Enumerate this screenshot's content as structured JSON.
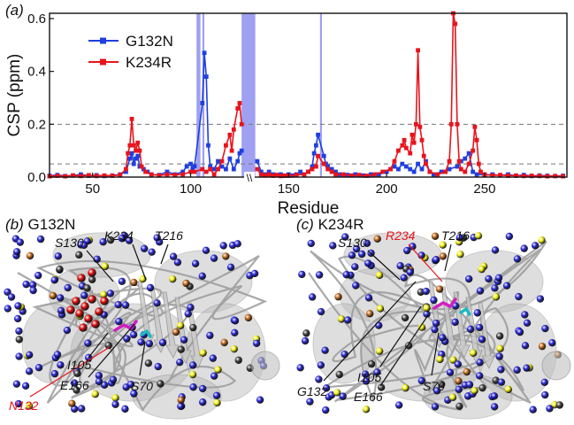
{
  "panel_a": {
    "tag": "(a)",
    "chart_data": {
      "type": "line",
      "xlabel": "Residue",
      "ylabel": "CSP (ppm)",
      "xlim": [
        28,
        292
      ],
      "ylim": [
        0,
        0.62
      ],
      "x_ticks": [
        50,
        100,
        150,
        200,
        250
      ],
      "y_ticks": [
        0.0,
        0.2,
        0.4,
        0.6
      ],
      "y_tick_labels": [
        "0.0",
        "0.2",
        "0.4",
        "0.6"
      ],
      "legend_position": "top-left",
      "thresholds": [
        0.05,
        0.2
      ],
      "highlight_ranges": [
        [
          103,
          105
        ],
        [
          106,
          107
        ],
        [
          126,
          133
        ],
        [
          166,
          167
        ]
      ],
      "axis_break_label": "\\\\",
      "series": [
        {
          "name": "G132N",
          "color": "#1f3fe0",
          "points": [
            [
              28,
              0.005
            ],
            [
              32,
              0.008
            ],
            [
              36,
              0.004
            ],
            [
              40,
              0.006
            ],
            [
              44,
              0.01
            ],
            [
              48,
              0.005
            ],
            [
              52,
              0.007
            ],
            [
              56,
              0.004
            ],
            [
              60,
              0.006
            ],
            [
              64,
              0.01
            ],
            [
              67,
              0.02
            ],
            [
              69,
              0.07
            ],
            [
              70,
              0.09
            ],
            [
              71,
              0.05
            ],
            [
              72,
              0.07
            ],
            [
              73,
              0.08
            ],
            [
              74,
              0.04
            ],
            [
              76,
              0.03
            ],
            [
              78,
              0.02
            ],
            [
              80,
              0.01
            ],
            [
              84,
              0.008
            ],
            [
              88,
              0.02
            ],
            [
              92,
              0.01
            ],
            [
              96,
              0.02
            ],
            [
              98,
              0.04
            ],
            [
              100,
              0.05
            ],
            [
              101,
              0.03
            ],
            [
              102,
              0.04
            ],
            [
              106,
              0.28
            ],
            [
              107,
              0.47
            ],
            [
              108,
              0.38
            ],
            [
              109,
              0.12
            ],
            [
              110,
              0.04
            ],
            [
              112,
              0.03
            ],
            [
              114,
              0.06
            ],
            [
              116,
              0.04
            ],
            [
              118,
              0.03
            ],
            [
              120,
              0.07
            ],
            [
              122,
              0.03
            ],
            [
              124,
              0.06
            ],
            [
              125,
              0.09
            ],
            [
              126,
              0.1
            ],
            [
              134,
              0.06
            ],
            [
              136,
              0.02
            ],
            [
              138,
              0.01
            ],
            [
              140,
              0.02
            ],
            [
              142,
              0.01
            ],
            [
              144,
              0.008
            ],
            [
              146,
              0.01
            ],
            [
              148,
              0.005
            ],
            [
              150,
              0.01
            ],
            [
              152,
              0.006
            ],
            [
              154,
              0.01
            ],
            [
              156,
              0.02
            ],
            [
              158,
              0.01
            ],
            [
              160,
              0.02
            ],
            [
              162,
              0.04
            ],
            [
              163,
              0.09
            ],
            [
              164,
              0.12
            ],
            [
              165,
              0.16
            ],
            [
              168,
              0.08
            ],
            [
              169,
              0.05
            ],
            [
              170,
              0.04
            ],
            [
              172,
              0.03
            ],
            [
              174,
              0.02
            ],
            [
              176,
              0.01
            ],
            [
              180,
              0.008
            ],
            [
              184,
              0.01
            ],
            [
              188,
              0.006
            ],
            [
              192,
              0.01
            ],
            [
              196,
              0.01
            ],
            [
              200,
              0.02
            ],
            [
              204,
              0.04
            ],
            [
              206,
              0.03
            ],
            [
              208,
              0.05
            ],
            [
              210,
              0.04
            ],
            [
              212,
              0.03
            ],
            [
              214,
              0.02
            ],
            [
              216,
              0.05
            ],
            [
              218,
              0.03
            ],
            [
              220,
              0.06
            ],
            [
              222,
              0.02
            ],
            [
              224,
              0.01
            ],
            [
              228,
              0.02
            ],
            [
              232,
              0.03
            ],
            [
              236,
              0.04
            ],
            [
              238,
              0.06
            ],
            [
              240,
              0.07
            ],
            [
              242,
              0.09
            ],
            [
              244,
              0.02
            ],
            [
              246,
              0.01
            ],
            [
              250,
              0.008
            ],
            [
              254,
              0.01
            ],
            [
              258,
              0.006
            ],
            [
              262,
              0.01
            ],
            [
              266,
              0.005
            ],
            [
              270,
              0.008
            ],
            [
              274,
              0.004
            ],
            [
              278,
              0.006
            ],
            [
              282,
              0.005
            ],
            [
              286,
              0.004
            ],
            [
              290,
              0.005
            ]
          ]
        },
        {
          "name": "K234R",
          "color": "#e8141c",
          "points": [
            [
              28,
              0.003
            ],
            [
              32,
              0.005
            ],
            [
              36,
              0.003
            ],
            [
              40,
              0.006
            ],
            [
              44,
              0.004
            ],
            [
              48,
              0.007
            ],
            [
              52,
              0.004
            ],
            [
              56,
              0.006
            ],
            [
              60,
              0.005
            ],
            [
              64,
              0.008
            ],
            [
              67,
              0.03
            ],
            [
              68,
              0.09
            ],
            [
              69,
              0.12
            ],
            [
              70,
              0.22
            ],
            [
              71,
              0.12
            ],
            [
              72,
              0.1
            ],
            [
              73,
              0.13
            ],
            [
              74,
              0.1
            ],
            [
              75,
              0.04
            ],
            [
              77,
              0.02
            ],
            [
              80,
              0.01
            ],
            [
              84,
              0.006
            ],
            [
              88,
              0.01
            ],
            [
              92,
              0.008
            ],
            [
              96,
              0.01
            ],
            [
              100,
              0.02
            ],
            [
              102,
              0.02
            ],
            [
              106,
              0.03
            ],
            [
              108,
              0.02
            ],
            [
              110,
              0.03
            ],
            [
              112,
              0.01
            ],
            [
              114,
              0.03
            ],
            [
              116,
              0.06
            ],
            [
              118,
              0.12
            ],
            [
              120,
              0.16
            ],
            [
              121,
              0.1
            ],
            [
              122,
              0.18
            ],
            [
              124,
              0.26
            ],
            [
              125,
              0.28
            ],
            [
              126,
              0.2
            ],
            [
              134,
              0.03
            ],
            [
              136,
              0.01
            ],
            [
              138,
              0.006
            ],
            [
              140,
              0.01
            ],
            [
              142,
              0.005
            ],
            [
              144,
              0.008
            ],
            [
              146,
              0.004
            ],
            [
              148,
              0.006
            ],
            [
              150,
              0.005
            ],
            [
              154,
              0.008
            ],
            [
              158,
              0.01
            ],
            [
              160,
              0.02
            ],
            [
              162,
              0.03
            ],
            [
              164,
              0.04
            ],
            [
              165,
              0.08
            ],
            [
              168,
              0.05
            ],
            [
              170,
              0.03
            ],
            [
              172,
              0.02
            ],
            [
              174,
              0.01
            ],
            [
              178,
              0.01
            ],
            [
              182,
              0.006
            ],
            [
              186,
              0.008
            ],
            [
              190,
              0.005
            ],
            [
              194,
              0.01
            ],
            [
              198,
              0.02
            ],
            [
              202,
              0.03
            ],
            [
              204,
              0.06
            ],
            [
              206,
              0.1
            ],
            [
              208,
              0.12
            ],
            [
              209,
              0.14
            ],
            [
              210,
              0.11
            ],
            [
              212,
              0.09
            ],
            [
              213,
              0.16
            ],
            [
              214,
              0.13
            ],
            [
              215,
              0.2
            ],
            [
              216,
              0.48
            ],
            [
              217,
              0.19
            ],
            [
              218,
              0.14
            ],
            [
              219,
              0.08
            ],
            [
              220,
              0.05
            ],
            [
              222,
              0.02
            ],
            [
              226,
              0.01
            ],
            [
              230,
              0.02
            ],
            [
              232,
              0.06
            ],
            [
              233,
              0.2
            ],
            [
              234,
              0.62
            ],
            [
              235,
              0.58
            ],
            [
              236,
              0.2
            ],
            [
              237,
              0.06
            ],
            [
              238,
              0.03
            ],
            [
              240,
              0.02
            ],
            [
              242,
              0.05
            ],
            [
              244,
              0.1
            ],
            [
              245,
              0.19
            ],
            [
              246,
              0.14
            ],
            [
              247,
              0.05
            ],
            [
              248,
              0.02
            ],
            [
              250,
              0.01
            ],
            [
              254,
              0.006
            ],
            [
              258,
              0.008
            ],
            [
              262,
              0.005
            ],
            [
              266,
              0.006
            ],
            [
              270,
              0.004
            ],
            [
              274,
              0.005
            ],
            [
              278,
              0.004
            ],
            [
              282,
              0.003
            ],
            [
              286,
              0.004
            ],
            [
              290,
              0.003
            ]
          ]
        }
      ]
    }
  },
  "panel_b": {
    "tag": "(b)",
    "title": "G132N",
    "labels": [
      {
        "text": "S130",
        "color": "#111111"
      },
      {
        "text": "K234",
        "color": "#111111"
      },
      {
        "text": "T216",
        "color": "#111111"
      },
      {
        "text": "N132",
        "color": "#e8141c"
      },
      {
        "text": "I105",
        "color": "#111111"
      },
      {
        "text": "E166",
        "color": "#111111"
      },
      {
        "text": "S70",
        "color": "#111111"
      }
    ]
  },
  "panel_c": {
    "tag": "(c)",
    "title": "K234R",
    "labels": [
      {
        "text": "S130",
        "color": "#111111"
      },
      {
        "text": "R234",
        "color": "#e8141c"
      },
      {
        "text": "T216",
        "color": "#111111"
      },
      {
        "text": "G132",
        "color": "#111111"
      },
      {
        "text": "I105",
        "color": "#111111"
      },
      {
        "text": "E166",
        "color": "#111111"
      },
      {
        "text": "S70",
        "color": "#111111"
      }
    ]
  },
  "structure_colors": {
    "ribbon": "#9a9a9a",
    "sphere_blue": "#2a2ad8",
    "sphere_yellow": "#f2f21a",
    "sphere_red": "#e01010",
    "sphere_orange": "#c46a1e",
    "sphere_black": "#1a1a1a",
    "ligand_magenta": "#d020c0",
    "ligand_cyan": "#20b8c0"
  }
}
